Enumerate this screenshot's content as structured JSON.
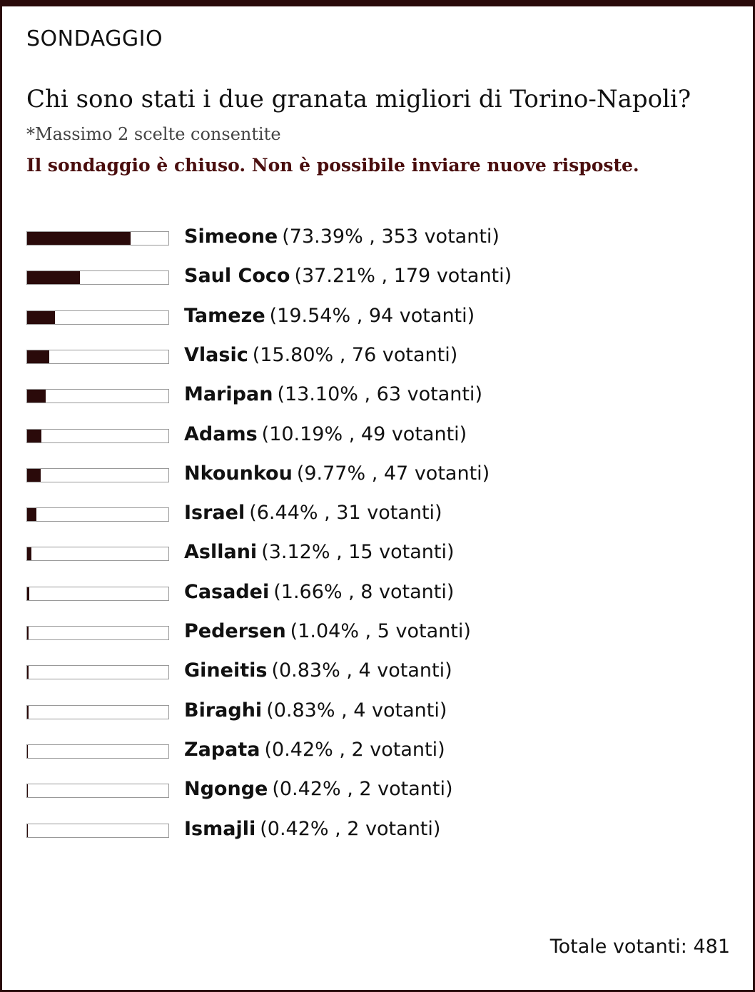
{
  "header": {
    "label": "SONDAGGIO",
    "question": "Chi sono stati i due granata migliori di Torino-Napoli?",
    "note": "*Massimo 2 scelte consentite",
    "status": "Il sondaggio è chiuso. Non è possibile inviare nuove risposte."
  },
  "options": [
    {
      "name": "Simeone",
      "percent": 73.39,
      "detail": "(73.39% , 353 votanti)"
    },
    {
      "name": "Saul Coco",
      "percent": 37.21,
      "detail": "(37.21% , 179 votanti)"
    },
    {
      "name": "Tameze",
      "percent": 19.54,
      "detail": "(19.54% , 94 votanti)"
    },
    {
      "name": "Vlasic",
      "percent": 15.8,
      "detail": "(15.80% , 76 votanti)"
    },
    {
      "name": "Maripan",
      "percent": 13.1,
      "detail": "(13.10% , 63 votanti)"
    },
    {
      "name": "Adams",
      "percent": 10.19,
      "detail": "(10.19% , 49 votanti)"
    },
    {
      "name": "Nkounkou",
      "percent": 9.77,
      "detail": "(9.77% , 47 votanti)"
    },
    {
      "name": "Israel",
      "percent": 6.44,
      "detail": "(6.44% , 31 votanti)"
    },
    {
      "name": "Asllani",
      "percent": 3.12,
      "detail": "(3.12% , 15 votanti)"
    },
    {
      "name": "Casadei",
      "percent": 1.66,
      "detail": "(1.66% , 8 votanti)"
    },
    {
      "name": "Pedersen",
      "percent": 1.04,
      "detail": "(1.04% , 5 votanti)"
    },
    {
      "name": "Gineitis",
      "percent": 0.83,
      "detail": "(0.83% , 4 votanti)"
    },
    {
      "name": "Biraghi",
      "percent": 0.83,
      "detail": "(0.83% , 4 votanti)"
    },
    {
      "name": "Zapata",
      "percent": 0.42,
      "detail": "(0.42% , 2 votanti)"
    },
    {
      "name": "Ngonge",
      "percent": 0.42,
      "detail": "(0.42% , 2 votanti)"
    },
    {
      "name": "Ismajli",
      "percent": 0.42,
      "detail": "(0.42% , 2 votanti)"
    }
  ],
  "footer": {
    "total": "Totale votanti: 481"
  }
}
